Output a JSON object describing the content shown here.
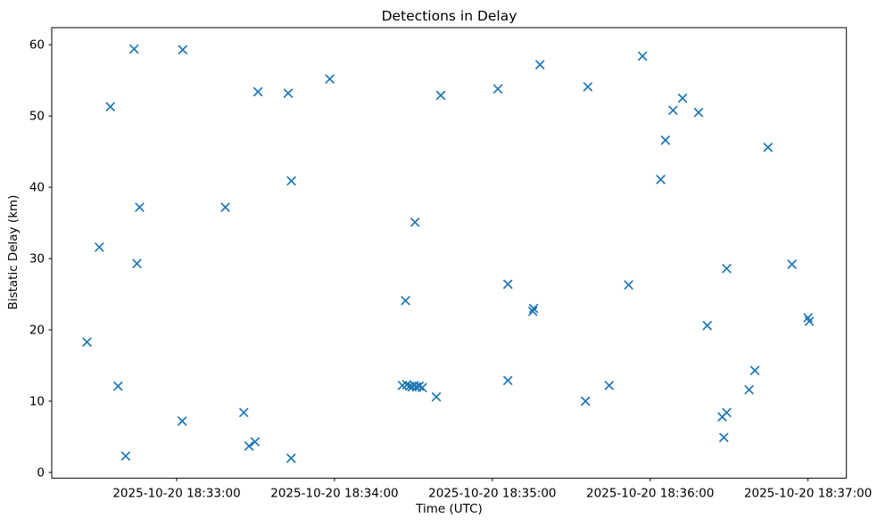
{
  "colors": {
    "marker": "#1f77b4",
    "text": "#000000",
    "spine": "#000000",
    "background": "#ffffff"
  },
  "chart_data": {
    "type": "scatter",
    "title": "Detections in Delay",
    "xlabel": "Time (UTC)",
    "ylabel": "Bistatic Delay (km)",
    "marker": "x",
    "marker_color": "#1f77b4",
    "grid": false,
    "legend_position": "none",
    "x_unit": "seconds after 2025-10-20 18:32:00 UTC",
    "xlim": [
      12.5,
      314.6
    ],
    "ylim": [
      -0.8,
      62.4
    ],
    "x_ticks": [
      {
        "t": 60,
        "label": "2025-10-20 18:33:00"
      },
      {
        "t": 120,
        "label": "2025-10-20 18:34:00"
      },
      {
        "t": 180,
        "label": "2025-10-20 18:35:00"
      },
      {
        "t": 240,
        "label": "2025-10-20 18:36:00"
      },
      {
        "t": 300,
        "label": "2025-10-20 18:37:00"
      }
    ],
    "y_ticks": [
      0,
      10,
      20,
      30,
      40,
      50,
      60
    ],
    "points": [
      [
        43.8,
        59.4
      ],
      [
        62.3,
        59.3
      ],
      [
        90.9,
        53.4
      ],
      [
        102.4,
        53.2
      ],
      [
        34.8,
        51.3
      ],
      [
        103.6,
        40.9
      ],
      [
        45.9,
        37.2
      ],
      [
        78.5,
        37.2
      ],
      [
        30.6,
        31.6
      ],
      [
        118.2,
        55.2
      ],
      [
        160.4,
        52.9
      ],
      [
        182.1,
        53.8
      ],
      [
        198.1,
        57.2
      ],
      [
        150.6,
        35.1
      ],
      [
        237.1,
        58.4
      ],
      [
        216.3,
        54.1
      ],
      [
        252.3,
        52.5
      ],
      [
        248.7,
        50.8
      ],
      [
        258.4,
        50.5
      ],
      [
        245.8,
        46.6
      ],
      [
        284.8,
        45.6
      ],
      [
        244.0,
        41.1
      ],
      [
        44.9,
        29.3
      ],
      [
        25.9,
        18.3
      ],
      [
        37.7,
        12.1
      ],
      [
        85.5,
        8.4
      ],
      [
        62.1,
        7.2
      ],
      [
        87.5,
        3.7
      ],
      [
        89.8,
        4.3
      ],
      [
        40.6,
        2.3
      ],
      [
        103.5,
        2.0
      ],
      [
        185.9,
        26.4
      ],
      [
        147.0,
        24.1
      ],
      [
        195.7,
        23.0
      ],
      [
        195.4,
        22.6
      ],
      [
        185.9,
        12.9
      ],
      [
        145.8,
        12.2
      ],
      [
        147.5,
        12.3
      ],
      [
        148.6,
        12.1
      ],
      [
        149.5,
        12.0
      ],
      [
        150.3,
        12.2
      ],
      [
        151.2,
        12.0
      ],
      [
        152.2,
        12.1
      ],
      [
        153.4,
        11.9
      ],
      [
        158.7,
        10.6
      ],
      [
        215.4,
        10.0
      ],
      [
        269.1,
        28.6
      ],
      [
        293.9,
        29.2
      ],
      [
        231.8,
        26.3
      ],
      [
        261.7,
        20.6
      ],
      [
        300.0,
        21.7
      ],
      [
        300.5,
        21.2
      ],
      [
        279.8,
        14.3
      ],
      [
        224.4,
        12.2
      ],
      [
        277.6,
        11.6
      ],
      [
        269.1,
        8.4
      ],
      [
        267.4,
        7.8
      ],
      [
        268.0,
        4.9
      ]
    ]
  }
}
